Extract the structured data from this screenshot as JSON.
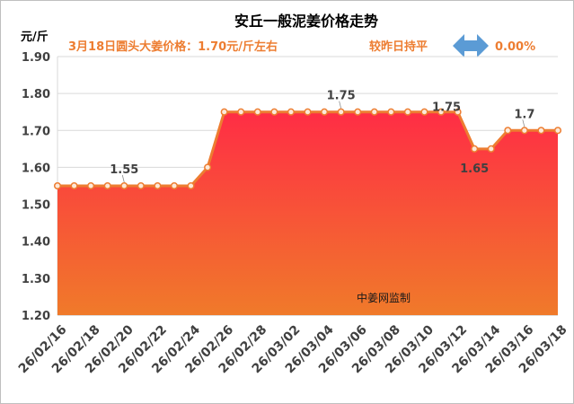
{
  "chart_data": {
    "type": "area",
    "title": "安丘一般泥姜价格走势",
    "subtitle": "3月18日圆头大姜价格：1.70元/斤左右",
    "change_label": "较昨日持平",
    "change_value": "0.00%",
    "ylabel": "元/斤",
    "watermark": "中姜网监制",
    "ylim": [
      1.2,
      1.9
    ],
    "y_ticks": [
      "1.20",
      "1.30",
      "1.40",
      "1.50",
      "1.60",
      "1.70",
      "1.80",
      "1.90"
    ],
    "x_tick_labels": [
      "26/02/16",
      "26/02/18",
      "26/02/20",
      "26/02/22",
      "26/02/24",
      "26/02/26",
      "26/02/28",
      "26/03/02",
      "26/03/04",
      "26/03/06",
      "26/03/08",
      "26/03/10",
      "26/03/12",
      "26/03/14",
      "26/03/16",
      "26/03/18"
    ],
    "x": [
      "26/02/16",
      "26/02/17",
      "26/02/18",
      "26/02/19",
      "26/02/20",
      "26/02/21",
      "26/02/22",
      "26/02/23",
      "26/02/24",
      "26/02/25",
      "26/02/26",
      "26/02/27",
      "26/02/28",
      "26/03/01",
      "26/03/02",
      "26/03/03",
      "26/03/04",
      "26/03/05",
      "26/03/06",
      "26/03/07",
      "26/03/08",
      "26/03/09",
      "26/03/10",
      "26/03/11",
      "26/03/12",
      "26/03/13",
      "26/03/14",
      "26/03/15",
      "26/03/16",
      "26/03/17",
      "26/03/18"
    ],
    "values": [
      1.55,
      1.55,
      1.55,
      1.55,
      1.55,
      1.55,
      1.55,
      1.55,
      1.55,
      1.6,
      1.75,
      1.75,
      1.75,
      1.75,
      1.75,
      1.75,
      1.75,
      1.75,
      1.75,
      1.75,
      1.75,
      1.75,
      1.75,
      1.75,
      1.75,
      1.65,
      1.65,
      1.7,
      1.7,
      1.7,
      1.7
    ],
    "annotations": [
      {
        "text": "1.55",
        "index": 4,
        "position": "above"
      },
      {
        "text": "1.75",
        "index": 17,
        "position": "above"
      },
      {
        "text": "1.75",
        "index": 23,
        "position": "right"
      },
      {
        "text": "1.65",
        "index": 25,
        "position": "below"
      },
      {
        "text": "1.7",
        "index": 28,
        "position": "above"
      }
    ],
    "grid": true,
    "colors": {
      "title": "#000000",
      "subtitle": "#ed7d31",
      "line": "#ed7d31",
      "fill_top": "#ff2d45",
      "fill_bottom": "#f07a2a",
      "arrow": "#5b9bd5",
      "grid": "#d9d9d9"
    }
  }
}
